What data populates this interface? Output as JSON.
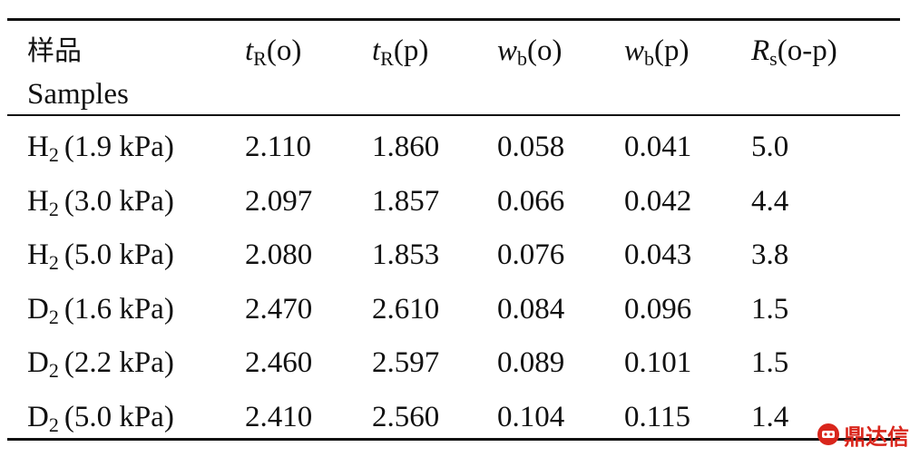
{
  "header": {
    "sample_label": [
      "样品",
      "Samples"
    ],
    "columns": [
      {
        "var": "t",
        "sub": "R",
        "suffix": "(o)"
      },
      {
        "var": "t",
        "sub": "R",
        "suffix": "(p)"
      },
      {
        "var": "w",
        "sub": "b",
        "suffix": "(o)"
      },
      {
        "var": "w",
        "sub": "b",
        "suffix": "(p)"
      },
      {
        "var": "R",
        "sub": "s",
        "suffix": "(o-p)"
      }
    ]
  },
  "rows": [
    {
      "sample": {
        "symbol": "H",
        "sub": "2",
        "condition": "(1.9 kPa)"
      },
      "values": [
        "2.110",
        "1.860",
        "0.058",
        "0.041",
        "5.0"
      ]
    },
    {
      "sample": {
        "symbol": "H",
        "sub": "2",
        "condition": "(3.0 kPa)"
      },
      "values": [
        "2.097",
        "1.857",
        "0.066",
        "0.042",
        "4.4"
      ]
    },
    {
      "sample": {
        "symbol": "H",
        "sub": "2",
        "condition": "(5.0 kPa)"
      },
      "values": [
        "2.080",
        "1.853",
        "0.076",
        "0.043",
        "3.8"
      ]
    },
    {
      "sample": {
        "symbol": "D",
        "sub": "2",
        "condition": "(1.6 kPa)"
      },
      "values": [
        "2.470",
        "2.610",
        "0.084",
        "0.096",
        "1.5"
      ]
    },
    {
      "sample": {
        "symbol": "D",
        "sub": "2",
        "condition": "(2.2 kPa)"
      },
      "values": [
        "2.460",
        "2.597",
        "0.089",
        "0.101",
        "1.5"
      ]
    },
    {
      "sample": {
        "symbol": "D",
        "sub": "2",
        "condition": "(5.0 kPa)"
      },
      "values": [
        "2.410",
        "2.560",
        "0.104",
        "0.115",
        "1.4"
      ]
    }
  ],
  "watermark": "鼎达信"
}
